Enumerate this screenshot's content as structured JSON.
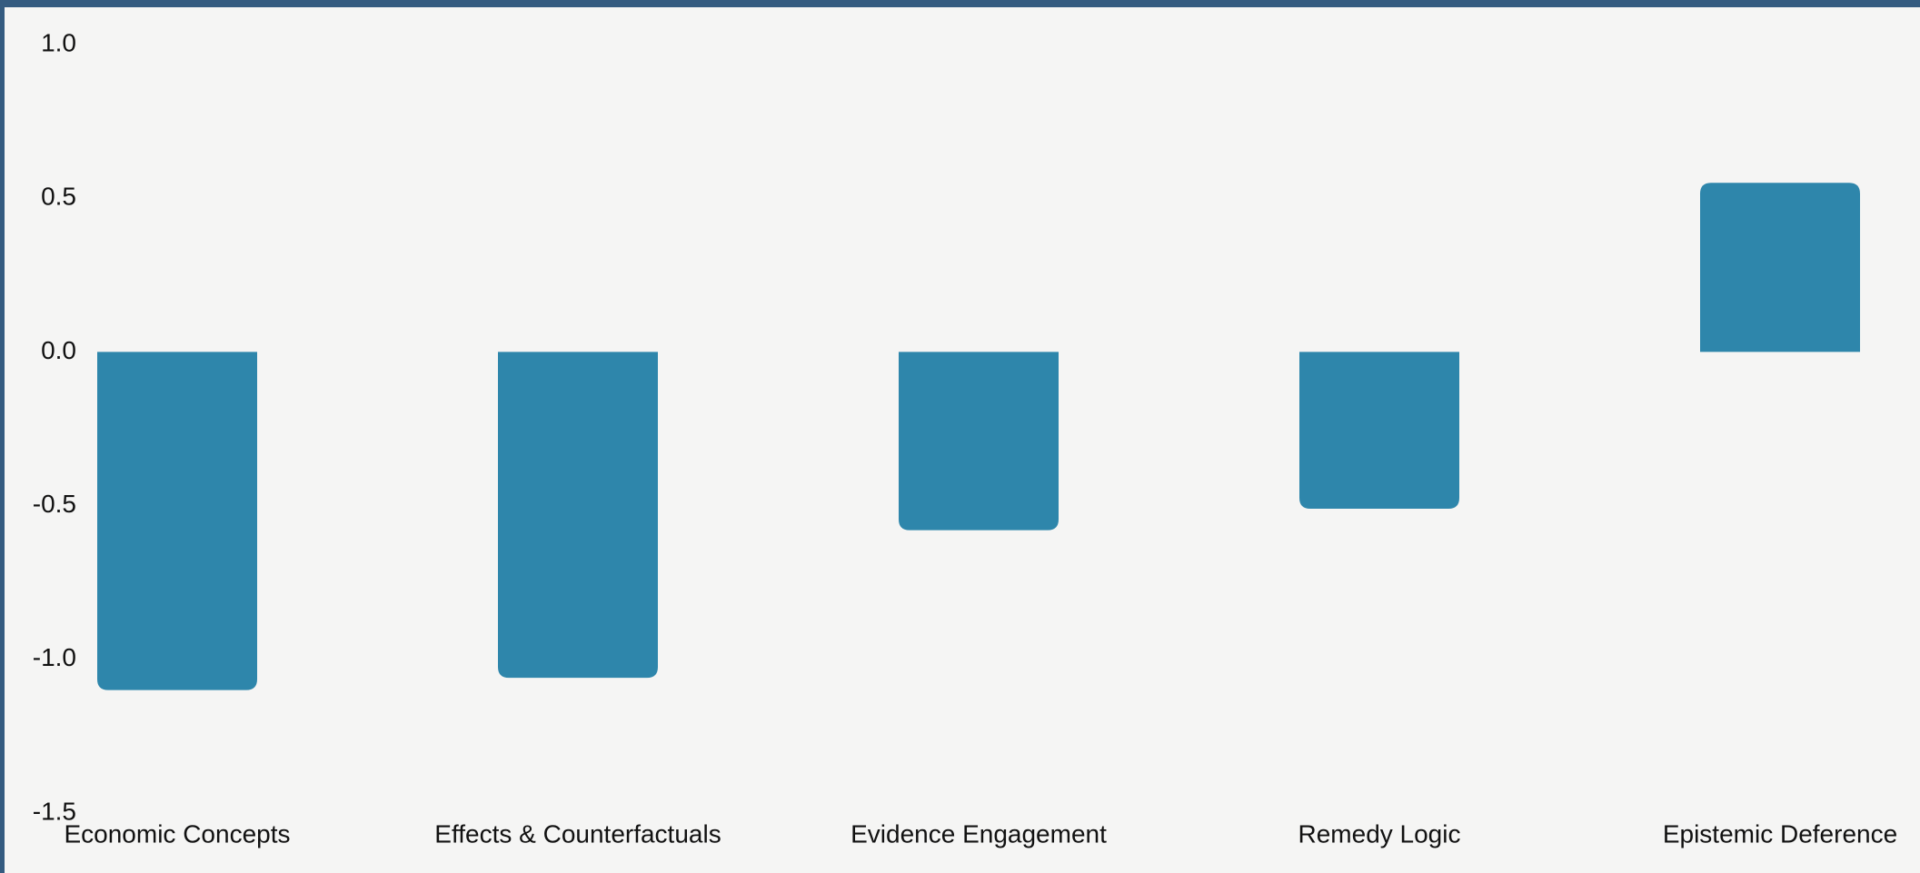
{
  "chart_data": {
    "type": "bar",
    "categories": [
      "Economic Concepts",
      "Effects & Counterfactuals",
      "Evidence Engagement",
      "Remedy Logic",
      "Epistemic Deference"
    ],
    "values": [
      -1.1,
      -1.06,
      -0.58,
      -0.51,
      0.55
    ],
    "color": "#2e86ab",
    "ylim": [
      -1.5,
      1.0
    ],
    "yticks": [
      {
        "value": -1.5,
        "label": "-1.5"
      },
      {
        "value": -1.0,
        "label": "-1.0"
      },
      {
        "value": -0.5,
        "label": "-0.5"
      },
      {
        "value": 0,
        "label": "0.0"
      },
      {
        "value": 0.5,
        "label": "0.5"
      },
      {
        "value": 1.0,
        "label": "1.0"
      }
    ],
    "grid": false
  }
}
